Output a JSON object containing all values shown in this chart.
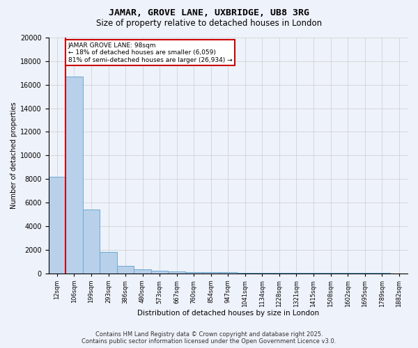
{
  "title": "JAMAR, GROVE LANE, UXBRIDGE, UB8 3RG",
  "subtitle": "Size of property relative to detached houses in London",
  "xlabel": "Distribution of detached houses by size in London",
  "ylabel": "Number of detached properties",
  "bin_labels": [
    "12sqm",
    "106sqm",
    "199sqm",
    "293sqm",
    "386sqm",
    "480sqm",
    "573sqm",
    "667sqm",
    "760sqm",
    "854sqm",
    "947sqm",
    "1041sqm",
    "1134sqm",
    "1228sqm",
    "1321sqm",
    "1415sqm",
    "1508sqm",
    "1602sqm",
    "1695sqm",
    "1789sqm",
    "1882sqm"
  ],
  "bar_values": [
    8200,
    16700,
    5400,
    1800,
    650,
    320,
    200,
    160,
    120,
    100,
    80,
    65,
    50,
    40,
    35,
    28,
    22,
    18,
    14,
    11,
    9
  ],
  "bar_color": "#b8d0ea",
  "bar_edge_color": "#6aaad4",
  "property_line_x": 1,
  "property_line_label": "JAMAR GROVE LANE: 98sqm",
  "annotation_line1": "← 18% of detached houses are smaller (6,059)",
  "annotation_line2": "81% of semi-detached houses are larger (26,934) →",
  "annotation_box_color": "#ffffff",
  "annotation_box_edge_color": "#cc0000",
  "vline_color": "#cc0000",
  "grid_color": "#cccccc",
  "background_color": "#eef2fa",
  "ylim": [
    0,
    20000
  ],
  "yticks": [
    0,
    2000,
    4000,
    6000,
    8000,
    10000,
    12000,
    14000,
    16000,
    18000,
    20000
  ],
  "footer_line1": "Contains HM Land Registry data © Crown copyright and database right 2025.",
  "footer_line2": "Contains public sector information licensed under the Open Government Licence v3.0."
}
